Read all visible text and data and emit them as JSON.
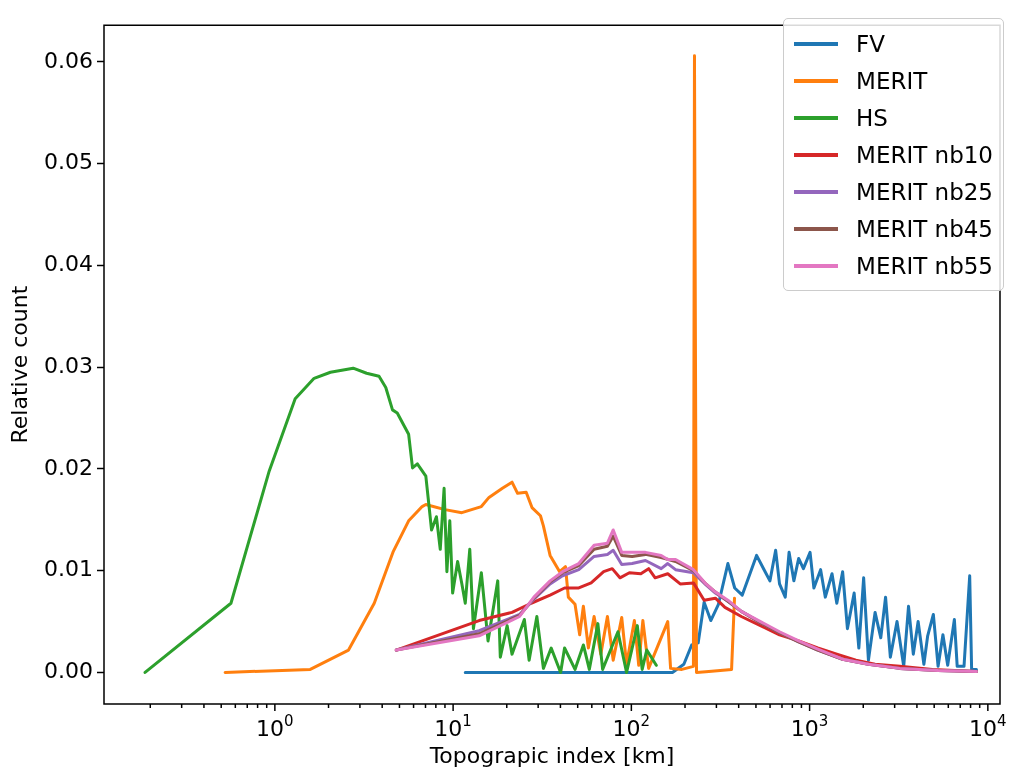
{
  "chart_data": {
    "type": "line",
    "xlabel": "Topograpic index [km]",
    "ylabel": "Relative count",
    "log": "x",
    "legend": "top right",
    "line_style": "solid",
    "xlim": [
      0.11,
      11700
    ],
    "ylim": [
      -0.0031,
      0.0636
    ],
    "xticks": [
      {
        "value": 0.2,
        "label": null
      },
      {
        "value": 0.3,
        "label": null
      },
      {
        "value": 0.4,
        "label": null
      },
      {
        "value": 0.5,
        "label": null
      },
      {
        "value": 0.6,
        "label": null
      },
      {
        "value": 0.7,
        "label": null
      },
      {
        "value": 0.8,
        "label": null
      },
      {
        "value": 0.9,
        "label": null
      },
      {
        "value": 1,
        "label": "10$^{0}$"
      },
      {
        "value": 2,
        "label": null
      },
      {
        "value": 3,
        "label": null
      },
      {
        "value": 4,
        "label": null
      },
      {
        "value": 5,
        "label": null
      },
      {
        "value": 6,
        "label": null
      },
      {
        "value": 7,
        "label": null
      },
      {
        "value": 8,
        "label": null
      },
      {
        "value": 9,
        "label": null
      },
      {
        "value": 10,
        "label": "10$^{1}$"
      },
      {
        "value": 20,
        "label": null
      },
      {
        "value": 30,
        "label": null
      },
      {
        "value": 40,
        "label": null
      },
      {
        "value": 50,
        "label": null
      },
      {
        "value": 60,
        "label": null
      },
      {
        "value": 70,
        "label": null
      },
      {
        "value": 80,
        "label": null
      },
      {
        "value": 90,
        "label": null
      },
      {
        "value": 100,
        "label": "10$^{2}$"
      },
      {
        "value": 200,
        "label": null
      },
      {
        "value": 300,
        "label": null
      },
      {
        "value": 400,
        "label": null
      },
      {
        "value": 500,
        "label": null
      },
      {
        "value": 600,
        "label": null
      },
      {
        "value": 700,
        "label": null
      },
      {
        "value": 800,
        "label": null
      },
      {
        "value": 900,
        "label": null
      },
      {
        "value": 1000,
        "label": "10$^{3}$"
      },
      {
        "value": 2000,
        "label": null
      },
      {
        "value": 3000,
        "label": null
      },
      {
        "value": 4000,
        "label": null
      },
      {
        "value": 5000,
        "label": null
      },
      {
        "value": 6000,
        "label": null
      },
      {
        "value": 7000,
        "label": null
      },
      {
        "value": 8000,
        "label": null
      },
      {
        "value": 9000,
        "label": null
      },
      {
        "value": 10000,
        "label": "10$^{4}$"
      }
    ],
    "yticks": [
      {
        "value": 0,
        "label": "0.00"
      },
      {
        "value": 0.01,
        "label": "0.01"
      },
      {
        "value": 0.02,
        "label": "0.02"
      },
      {
        "value": 0.03,
        "label": "0.03"
      },
      {
        "value": 0.04,
        "label": "0.04"
      },
      {
        "value": 0.05,
        "label": "0.05"
      },
      {
        "value": 0.06,
        "label": "0.06"
      }
    ],
    "series": [
      {
        "name": "FV",
        "color": "#1f77b4",
        "x": [
          11.7,
          170,
          197,
          218,
          237,
          256,
          279,
          308,
          348,
          380,
          419,
          504,
          563,
          599,
          645,
          678,
          730,
          767,
          816,
          868,
          923,
          1006,
          1057,
          1153,
          1225,
          1336,
          1421,
          1532,
          1630,
          1778,
          1889,
          2010,
          2138,
          2330,
          2508,
          2668,
          2838,
          3093,
          3373,
          3589,
          3819,
          4063,
          4377,
          4597,
          4946,
          5258,
          5597,
          5953,
          6490,
          6730,
          7350,
          7910,
          8110,
          8630
        ],
        "values": [
          0,
          0,
          0.0008,
          0.0027,
          0.0029,
          0.0069,
          0.0051,
          0.0067,
          0.0107,
          0.0083,
          0.0076,
          0.0115,
          0.0099,
          0.009,
          0.012,
          0.0087,
          0.0074,
          0.0118,
          0.009,
          0.0112,
          0.0102,
          0.0118,
          0.0083,
          0.0101,
          0.0074,
          0.0097,
          0.0068,
          0.0099,
          0.0043,
          0.0078,
          0.0024,
          0.0093,
          0.0012,
          0.0059,
          0.0034,
          0.0074,
          0.0015,
          0.005,
          0.0006,
          0.0065,
          0.0018,
          0.005,
          0.0008,
          0.0036,
          0.0057,
          0.0006,
          0.0037,
          0.0007,
          0.0052,
          0.0006,
          0.0006,
          0.0095,
          0.0003,
          0.0003
        ]
      },
      {
        "name": "MERIT",
        "color": "#ff7f0e",
        "x": [
          0.526,
          1.58,
          2.59,
          3.61,
          4.62,
          5.63,
          6.7,
          7.03,
          9.0,
          11.2,
          14.4,
          15.9,
          18.9,
          21.4,
          23.0,
          25.7,
          27.7,
          30.9,
          32.1,
          35.0,
          39.6,
          42.7,
          44.3,
          48.3,
          51.3,
          53.8,
          57.4,
          61.8,
          67.4,
          73.4,
          79.1,
          88.3,
          94,
          104,
          110,
          116,
          125,
          160,
          166,
          192,
          223,
          226,
          232,
          272,
          365,
          379
        ],
        "values": [
          0,
          0.0003,
          0.0022,
          0.0068,
          0.0119,
          0.0149,
          0.0163,
          0.0165,
          0.016,
          0.0157,
          0.0163,
          0.0172,
          0.0181,
          0.0187,
          0.0176,
          0.0177,
          0.0162,
          0.0154,
          0.0144,
          0.0115,
          0.0099,
          0.0104,
          0.0074,
          0.0067,
          0.0037,
          0.0065,
          0.0024,
          0.0055,
          0.0018,
          0.0055,
          0.0012,
          0.0054,
          0.0008,
          0.0051,
          0.0007,
          0.0051,
          0.0004,
          0.005,
          0.0004,
          0.0003,
          0.0006,
          0.0606,
          0,
          0.0001,
          0.0003,
          0.0073
        ]
      },
      {
        "name": "HS",
        "color": "#2ca02c",
        "x": [
          0.187,
          0.567,
          0.93,
          1.3,
          1.66,
          2.05,
          2.75,
          3.27,
          3.84,
          4.19,
          4.57,
          4.86,
          5.63,
          5.92,
          6.3,
          7.03,
          7.57,
          8.06,
          8.47,
          8.9,
          9.23,
          9.58,
          9.94,
          10.6,
          11.2,
          11.7,
          12.4,
          13.0,
          14.4,
          15.7,
          17.8,
          18.4,
          20.1,
          21.4,
          25.1,
          26.7,
          29.5,
          32.1,
          35.5,
          40.1,
          42.2,
          48.3,
          53.8,
          58.1,
          64.9,
          69.0,
          84.1,
          94,
          108,
          115,
          122,
          138
        ],
        "values": [
          0,
          0.0068,
          0.0198,
          0.0269,
          0.0289,
          0.0295,
          0.0299,
          0.0294,
          0.0291,
          0.028,
          0.0258,
          0.0255,
          0.0234,
          0.0201,
          0.0205,
          0.0193,
          0.014,
          0.0153,
          0.0121,
          0.0181,
          0.0099,
          0.0149,
          0.0078,
          0.0109,
          0.0087,
          0.0068,
          0.0121,
          0.0043,
          0.0098,
          0.0031,
          0.009,
          0.0015,
          0.0046,
          0.0018,
          0.0052,
          0.0012,
          0.0055,
          0.0004,
          0.0024,
          0,
          0.0024,
          0.0003,
          0.0027,
          0.0003,
          0.0048,
          0.0003,
          0.004,
          0,
          0.0046,
          0.0003,
          0.0022,
          0.0007
        ]
      },
      {
        "name": "MERIT nb10",
        "color": "#d62728",
        "x": [
          4.8,
          14.0,
          21.4,
          27.4,
          35.0,
          42.2,
          50.7,
          59.5,
          69.9,
          78.1,
          86.3,
          97.5,
          113,
          125,
          136,
          160,
          188,
          223,
          256,
          296,
          335,
          414,
          530,
          678,
          868,
          1111,
          1421,
          1820,
          2330,
          3210,
          4887,
          8630
        ],
        "values": [
          0.0022,
          0.0051,
          0.0059,
          0.0068,
          0.0076,
          0.0083,
          0.0083,
          0.0088,
          0.0099,
          0.0102,
          0.0093,
          0.0098,
          0.0097,
          0.0102,
          0.0093,
          0.0097,
          0.0087,
          0.0088,
          0.0071,
          0.0073,
          0.0064,
          0.0055,
          0.0046,
          0.0037,
          0.0031,
          0.0024,
          0.0018,
          0.0012,
          0.0008,
          0.0006,
          0.0003,
          0.0001
        ]
      },
      {
        "name": "MERIT nb25",
        "color": "#9467bd",
        "x": [
          4.8,
          14.0,
          23.6,
          28.4,
          35.0,
          41.1,
          50.7,
          61.8,
          73.4,
          79.1,
          88.3,
          101,
          120,
          147,
          160,
          177,
          223,
          262,
          296,
          348,
          414,
          530,
          678,
          868,
          1111,
          1532,
          2138,
          3210,
          5258,
          8630
        ],
        "values": [
          0.0022,
          0.0041,
          0.0057,
          0.0072,
          0.0087,
          0.0095,
          0.0101,
          0.0114,
          0.0116,
          0.012,
          0.0106,
          0.0107,
          0.011,
          0.0102,
          0.0107,
          0.0101,
          0.0098,
          0.0086,
          0.0078,
          0.007,
          0.006,
          0.0049,
          0.0039,
          0.003,
          0.0022,
          0.0013,
          0.0008,
          0.0004,
          0.0002,
          0.0001
        ]
      },
      {
        "name": "MERIT nb45",
        "color": "#8c564b",
        "x": [
          4.8,
          14.0,
          23.6,
          28.4,
          35.0,
          41.1,
          50.7,
          61.8,
          73.4,
          79.1,
          88.3,
          101,
          120,
          147,
          177,
          223,
          262,
          296,
          348,
          414,
          530,
          678,
          868,
          1111,
          1532,
          2138,
          3210,
          5258,
          8630
        ],
        "values": [
          0.0022,
          0.0038,
          0.0056,
          0.0073,
          0.0089,
          0.0098,
          0.0105,
          0.0121,
          0.0124,
          0.0134,
          0.0115,
          0.0114,
          0.0116,
          0.0113,
          0.0109,
          0.01,
          0.0087,
          0.0079,
          0.007,
          0.006,
          0.0049,
          0.0039,
          0.003,
          0.0022,
          0.0013,
          0.0008,
          0.0004,
          0.0002,
          0.0001
        ]
      },
      {
        "name": "MERIT nb55",
        "color": "#e377c2",
        "x": [
          4.8,
          14.0,
          23.6,
          28.4,
          35.0,
          41.1,
          50.7,
          61.8,
          73.4,
          79.1,
          88.3,
          101,
          120,
          147,
          160,
          177,
          223,
          262,
          296,
          348,
          414,
          530,
          678,
          868,
          1111,
          1532,
          2138,
          3210,
          5258,
          8630
        ],
        "values": [
          0.0022,
          0.0036,
          0.0055,
          0.0074,
          0.009,
          0.0099,
          0.0107,
          0.0125,
          0.0127,
          0.014,
          0.0118,
          0.0118,
          0.0118,
          0.0115,
          0.0111,
          0.0111,
          0.0101,
          0.0087,
          0.0079,
          0.0071,
          0.006,
          0.005,
          0.004,
          0.0031,
          0.0023,
          0.0013,
          0.0008,
          0.0004,
          0.0002,
          0.0001
        ]
      }
    ]
  }
}
